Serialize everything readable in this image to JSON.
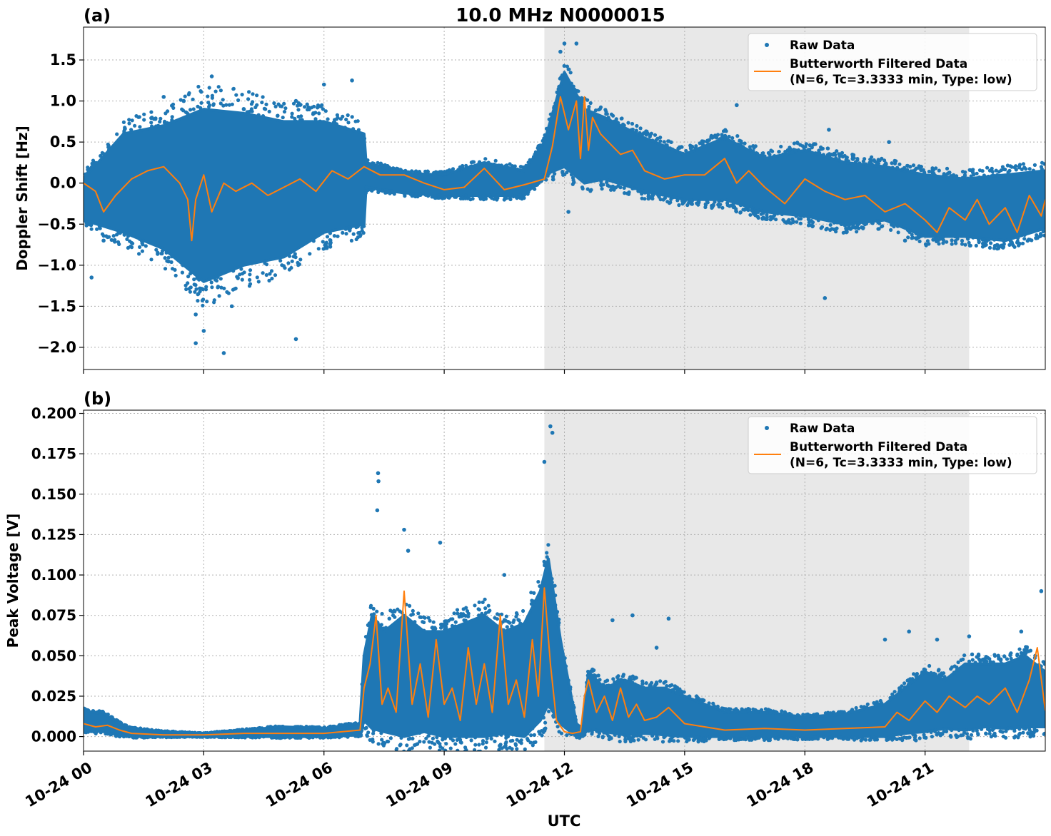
{
  "figure": {
    "title": "10.0 MHz N0000015",
    "xlabel": "UTC",
    "x_tick_labels": [
      "10-24 00",
      "10-24 03",
      "10-24 06",
      "10-24 09",
      "10-24 12",
      "10-24 15",
      "10-24 18",
      "10-24 21"
    ],
    "shaded_region_hours": [
      11.5,
      22.1
    ],
    "colors": {
      "raw": "#1f77b4",
      "filtered": "#ff7f0e",
      "shade": "#e8e8e8",
      "grid": "#b0b0b0"
    }
  },
  "chart_data": [
    {
      "type": "scatter",
      "panel_label": "(a)",
      "ylabel": "Doppler Shift [Hz]",
      "xlim_hours": [
        0,
        24
      ],
      "ylim": [
        -2.27,
        1.9
      ],
      "y_ticks": [
        1.5,
        1.0,
        0.5,
        0.0,
        -0.5,
        -1.0,
        -1.5,
        -2.0
      ],
      "y_tick_labels": [
        "1.5",
        "1.0",
        "0.5",
        "0.0",
        "−0.5",
        "−1.0",
        "−1.5",
        "−2.0"
      ],
      "legend": {
        "placement": "upper right",
        "entries": [
          "Raw Data",
          "Butterworth Filtered Data",
          "(N=6, Tc=3.3333 min, Type: low)"
        ]
      },
      "series": [
        {
          "name": "Raw Data",
          "kind": "band",
          "x_hours": [
            0,
            1,
            2,
            3,
            4,
            5,
            6,
            7,
            7.05,
            8,
            9,
            10,
            11,
            11.5,
            12,
            12.5,
            13,
            14,
            15,
            16,
            17,
            18,
            19,
            20,
            21,
            22,
            23,
            24
          ],
          "lower": [
            -0.45,
            -0.6,
            -0.8,
            -1.2,
            -1.0,
            -0.9,
            -0.6,
            -0.5,
            -0.05,
            -0.12,
            -0.15,
            -0.15,
            -0.15,
            0.1,
            0.2,
            0.0,
            0.05,
            -0.1,
            -0.2,
            -0.2,
            -0.35,
            -0.4,
            -0.5,
            -0.45,
            -0.65,
            -0.65,
            -0.7,
            -0.55
          ],
          "upper": [
            0.05,
            0.6,
            0.7,
            0.9,
            0.85,
            0.75,
            0.75,
            0.6,
            0.25,
            0.12,
            0.1,
            0.25,
            0.15,
            0.5,
            1.35,
            0.9,
            0.8,
            0.55,
            0.35,
            0.55,
            0.3,
            0.4,
            0.25,
            0.2,
            0.1,
            0.05,
            0.1,
            0.15
          ]
        },
        {
          "name": "Raw Data",
          "kind": "outliers",
          "x_hours": [
            0.2,
            0.5,
            2.0,
            2.5,
            2.8,
            2.8,
            3.0,
            3.2,
            3.5,
            3.7,
            4.0,
            5.3,
            5.3,
            6.0,
            6.7,
            11.9,
            12.0,
            12.3,
            12.1,
            16.3,
            18.5,
            18.6,
            20.1,
            20.5
          ],
          "y": [
            -1.15,
            -0.7,
            1.05,
            1.0,
            -1.95,
            -1.6,
            -1.8,
            1.3,
            -2.07,
            -1.5,
            0.9,
            -1.9,
            1.0,
            1.2,
            1.25,
            1.6,
            1.7,
            1.7,
            -0.35,
            0.95,
            -1.4,
            0.65,
            0.5,
            -0.7
          ]
        },
        {
          "name": "Butterworth Filtered Data",
          "kind": "line",
          "x_hours": [
            0,
            0.3,
            0.5,
            0.8,
            1.2,
            1.6,
            2.0,
            2.4,
            2.6,
            2.7,
            2.8,
            3.0,
            3.2,
            3.5,
            3.8,
            4.2,
            4.6,
            5.0,
            5.4,
            5.8,
            6.2,
            6.6,
            7.0,
            7.4,
            8.0,
            8.5,
            9.0,
            9.5,
            10.0,
            10.5,
            11.0,
            11.5,
            11.7,
            11.9,
            12.1,
            12.3,
            12.4,
            12.5,
            12.6,
            12.7,
            12.9,
            13.1,
            13.4,
            13.7,
            14.0,
            14.5,
            15.0,
            15.5,
            16.0,
            16.3,
            16.6,
            17.0,
            17.5,
            18.0,
            18.5,
            19.0,
            19.5,
            20.0,
            20.5,
            21.0,
            21.3,
            21.6,
            22.0,
            22.3,
            22.6,
            23.0,
            23.3,
            23.6,
            23.9,
            24.0
          ],
          "y": [
            0.0,
            -0.1,
            -0.35,
            -0.15,
            0.05,
            0.15,
            0.2,
            0.0,
            -0.2,
            -0.7,
            -0.2,
            0.1,
            -0.35,
            0.0,
            -0.1,
            0.0,
            -0.15,
            -0.05,
            0.05,
            -0.1,
            0.15,
            0.05,
            0.2,
            0.1,
            0.1,
            0.0,
            -0.08,
            -0.05,
            0.18,
            -0.08,
            -0.02,
            0.05,
            0.45,
            1.05,
            0.65,
            1.0,
            0.3,
            1.05,
            0.4,
            0.8,
            0.6,
            0.5,
            0.35,
            0.4,
            0.15,
            0.05,
            0.1,
            0.1,
            0.3,
            0.0,
            0.15,
            -0.05,
            -0.25,
            0.05,
            -0.1,
            -0.2,
            -0.15,
            -0.35,
            -0.25,
            -0.45,
            -0.6,
            -0.3,
            -0.45,
            -0.2,
            -0.5,
            -0.3,
            -0.6,
            -0.15,
            -0.4,
            -0.2
          ]
        }
      ]
    },
    {
      "type": "scatter",
      "panel_label": "(b)",
      "ylabel": "Peak Voltage [V]",
      "xlim_hours": [
        0,
        24
      ],
      "ylim": [
        -0.009,
        0.202
      ],
      "y_ticks": [
        0.2,
        0.175,
        0.15,
        0.125,
        0.1,
        0.075,
        0.05,
        0.025,
        0.0
      ],
      "y_tick_labels": [
        "0.200",
        "0.175",
        "0.150",
        "0.125",
        "0.100",
        "0.075",
        "0.050",
        "0.025",
        "0.000"
      ],
      "legend": {
        "placement": "upper right",
        "entries": [
          "Raw Data",
          "Butterworth Filtered Data",
          "(N=6, Tc=3.3333 min, Type: low)"
        ]
      },
      "series": [
        {
          "name": "Raw Data",
          "kind": "band",
          "x_hours": [
            0,
            0.5,
            0.9,
            1.2,
            2,
            3,
            4,
            5,
            6,
            6.9,
            7.0,
            7.2,
            7.5,
            8.0,
            8.5,
            9.0,
            9.5,
            10.0,
            10.5,
            11.0,
            11.4,
            11.6,
            11.9,
            12.3,
            12.45,
            12.6,
            13.0,
            13.5,
            14.0,
            14.5,
            15.0,
            15.5,
            16.0,
            17.0,
            18.0,
            19.0,
            20.0,
            20.5,
            21.0,
            21.5,
            22.0,
            22.5,
            23.0,
            23.5,
            24.0
          ],
          "lower": [
            0.004,
            0.003,
            0.001,
            0.0,
            0.0,
            0.0,
            0.0,
            0.0,
            0.0,
            0.001,
            0.01,
            0.005,
            0.003,
            0.0,
            0.003,
            0.0,
            0.0,
            0.0,
            0.002,
            0.0,
            0.01,
            0.02,
            0.008,
            0.0,
            0.0,
            0.005,
            0.003,
            0.001,
            0.002,
            0.001,
            0.0,
            0.0,
            0.0,
            0.0,
            0.0,
            0.0,
            0.0,
            0.002,
            0.003,
            0.005,
            0.004,
            0.006,
            0.005,
            0.006,
            0.006
          ],
          "upper": [
            0.016,
            0.014,
            0.008,
            0.005,
            0.003,
            0.002,
            0.004,
            0.006,
            0.005,
            0.008,
            0.05,
            0.075,
            0.065,
            0.075,
            0.065,
            0.065,
            0.07,
            0.075,
            0.065,
            0.07,
            0.09,
            0.11,
            0.06,
            0.008,
            0.005,
            0.04,
            0.03,
            0.035,
            0.03,
            0.03,
            0.025,
            0.02,
            0.015,
            0.015,
            0.012,
            0.014,
            0.02,
            0.03,
            0.04,
            0.035,
            0.045,
            0.045,
            0.045,
            0.05,
            0.04
          ]
        },
        {
          "name": "Raw Data",
          "kind": "outliers",
          "x_hours": [
            7.35,
            7.36,
            7.33,
            8.0,
            8.1,
            8.9,
            10.5,
            11.5,
            11.65,
            11.7,
            13.2,
            13.7,
            14.3,
            14.6,
            20.0,
            20.6,
            21.3,
            22.1,
            23.4,
            23.9
          ],
          "y": [
            0.163,
            0.158,
            0.14,
            0.128,
            0.115,
            0.12,
            0.1,
            0.17,
            0.192,
            0.188,
            0.072,
            0.075,
            0.055,
            0.073,
            0.06,
            0.065,
            0.06,
            0.062,
            0.065,
            0.09
          ]
        },
        {
          "name": "Butterworth Filtered Data",
          "kind": "line",
          "x_hours": [
            0,
            0.3,
            0.6,
            0.9,
            1.2,
            2,
            3,
            4,
            5,
            6,
            6.9,
            7.0,
            7.15,
            7.3,
            7.45,
            7.6,
            7.8,
            8.0,
            8.2,
            8.4,
            8.6,
            8.8,
            9.0,
            9.2,
            9.4,
            9.6,
            9.8,
            10.0,
            10.2,
            10.4,
            10.6,
            10.8,
            11.0,
            11.2,
            11.35,
            11.5,
            11.65,
            11.8,
            12.0,
            12.2,
            12.4,
            12.5,
            12.6,
            12.8,
            13.0,
            13.2,
            13.4,
            13.6,
            13.8,
            14.0,
            14.3,
            14.6,
            15.0,
            15.5,
            16.0,
            17.0,
            18.0,
            19.0,
            20.0,
            20.3,
            20.6,
            21.0,
            21.3,
            21.6,
            22.0,
            22.3,
            22.6,
            23.0,
            23.3,
            23.6,
            23.8,
            24.0
          ],
          "y": [
            0.008,
            0.006,
            0.007,
            0.004,
            0.002,
            0.001,
            0.001,
            0.002,
            0.002,
            0.002,
            0.004,
            0.03,
            0.045,
            0.075,
            0.02,
            0.03,
            0.015,
            0.09,
            0.02,
            0.045,
            0.012,
            0.06,
            0.02,
            0.03,
            0.01,
            0.055,
            0.02,
            0.045,
            0.015,
            0.075,
            0.02,
            0.035,
            0.012,
            0.06,
            0.025,
            0.092,
            0.045,
            0.01,
            0.003,
            0.002,
            0.003,
            0.025,
            0.035,
            0.015,
            0.025,
            0.01,
            0.03,
            0.012,
            0.02,
            0.01,
            0.012,
            0.018,
            0.008,
            0.006,
            0.004,
            0.005,
            0.004,
            0.005,
            0.006,
            0.015,
            0.01,
            0.022,
            0.015,
            0.025,
            0.018,
            0.025,
            0.02,
            0.03,
            0.015,
            0.035,
            0.055,
            0.016
          ]
        }
      ]
    }
  ]
}
